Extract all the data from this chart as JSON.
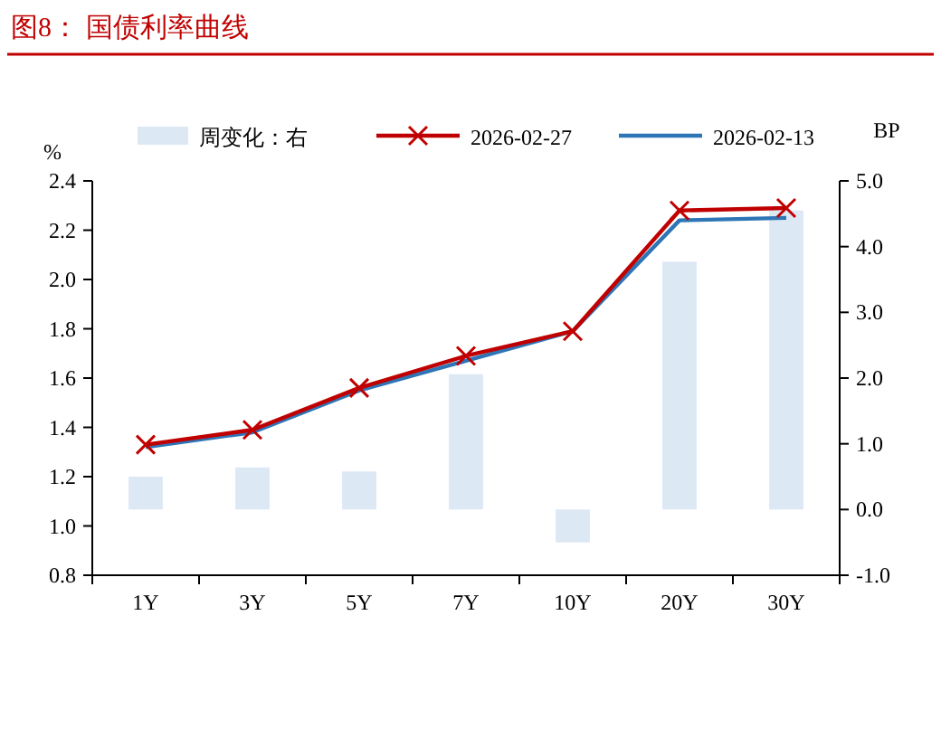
{
  "chart_data": {
    "type": "line",
    "title": "图8：  国债利率曲线",
    "ylabel": "%",
    "y2label": "BP",
    "categories": [
      "1Y",
      "3Y",
      "5Y",
      "7Y",
      "10Y",
      "20Y",
      "30Y"
    ],
    "series": [
      {
        "name": "周变化：右",
        "type": "bar",
        "axis": "y2",
        "color": "#dde8f5",
        "values": [
          0.5,
          0.64,
          0.58,
          2.06,
          -0.5,
          3.77,
          4.55
        ]
      },
      {
        "name": "2026-02-27",
        "color": "#c00000",
        "marker": "cross",
        "values": [
          1.33,
          1.39,
          1.56,
          1.69,
          1.79,
          2.28,
          2.29
        ]
      },
      {
        "name": "2026-02-13",
        "color": "#2e75b6",
        "marker": "none",
        "values": [
          1.32,
          1.38,
          1.55,
          1.67,
          1.79,
          2.24,
          2.25
        ]
      }
    ],
    "ylim": [
      0.8,
      2.4
    ],
    "yticks": [
      {
        "value": 0.8,
        "label": "0.8"
      },
      {
        "value": 1.0,
        "label": "1.0"
      },
      {
        "value": 1.2,
        "label": "1.2"
      },
      {
        "value": 1.4,
        "label": "1.4"
      },
      {
        "value": 1.6,
        "label": "1.6"
      },
      {
        "value": 1.8,
        "label": "1.8"
      },
      {
        "value": 2.0,
        "label": "2.0"
      },
      {
        "value": 2.2,
        "label": "2.2"
      },
      {
        "value": 2.4,
        "label": "2.4"
      }
    ],
    "y2lim": [
      -1.0,
      5.0
    ],
    "y2ticks": [
      {
        "value": -1.0,
        "label": "-1.0"
      },
      {
        "value": 0.0,
        "label": "0.0"
      },
      {
        "value": 1.0,
        "label": "1.0"
      },
      {
        "value": 2.0,
        "label": "2.0"
      },
      {
        "value": 3.0,
        "label": "3.0"
      },
      {
        "value": 4.0,
        "label": "4.0"
      },
      {
        "value": 5.0,
        "label": "5.0"
      }
    ],
    "grid": false,
    "legend": "top"
  }
}
